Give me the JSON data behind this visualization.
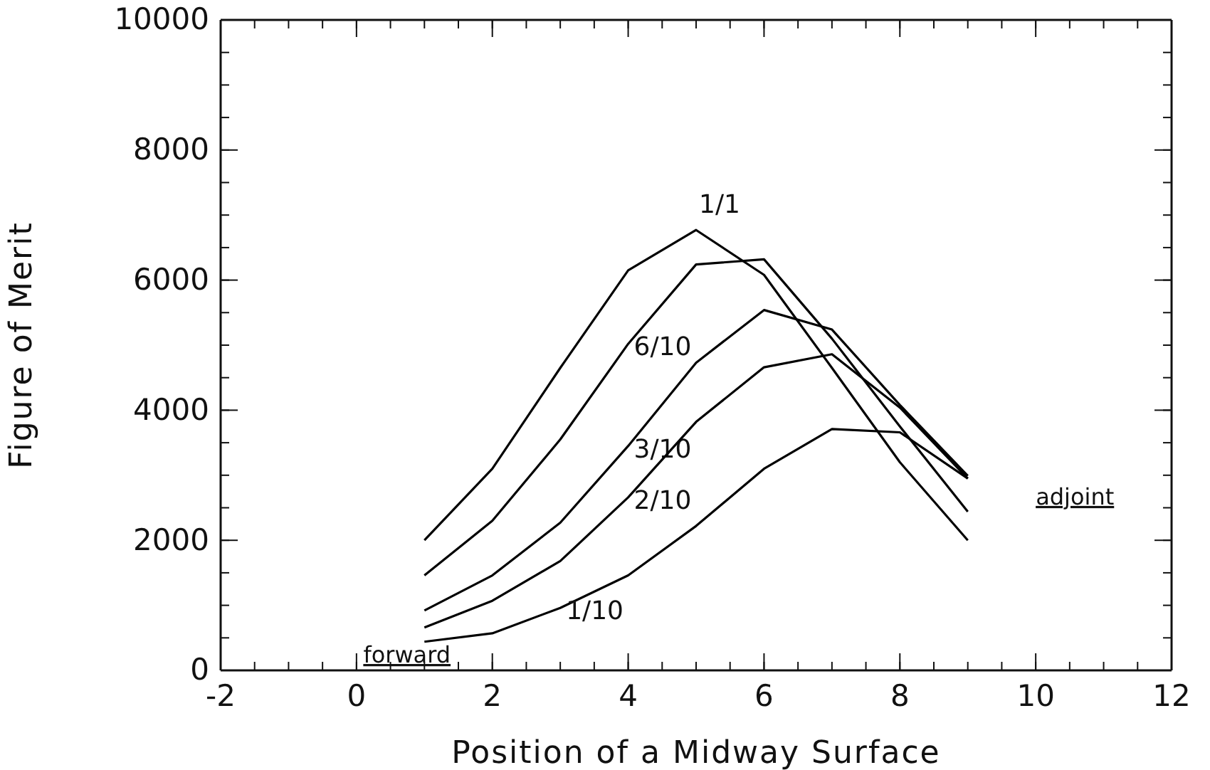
{
  "chart_data": {
    "type": "line",
    "xlabel": "Position of a Midway Surface",
    "ylabel": "Figure of Merit",
    "x": [
      1,
      2,
      3,
      4,
      5,
      6,
      7,
      8,
      9
    ],
    "series": [
      {
        "name": "1/1",
        "color": "#000000",
        "values": [
          2000,
          3100,
          4650,
          6150,
          6770,
          6080,
          4650,
          3200,
          2000
        ]
      },
      {
        "name": "6/10",
        "color": "#000000",
        "values": [
          1460,
          2300,
          3550,
          5020,
          6240,
          6320,
          5100,
          3750,
          2440
        ]
      },
      {
        "name": "3/10",
        "color": "#000000",
        "values": [
          920,
          1460,
          2270,
          3450,
          4730,
          5540,
          5240,
          4080,
          2990
        ]
      },
      {
        "name": "2/10",
        "color": "#000000",
        "values": [
          660,
          1070,
          1680,
          2660,
          3820,
          4660,
          4860,
          4040,
          2950
        ]
      },
      {
        "name": "1/10",
        "color": "#000000",
        "values": [
          440,
          570,
          960,
          1460,
          2220,
          3100,
          3710,
          3660,
          2950
        ]
      }
    ],
    "xlim": [
      -2,
      12
    ],
    "xticks": [
      -2,
      0,
      2,
      4,
      6,
      8,
      10,
      12
    ],
    "ylim": [
      0,
      10000
    ],
    "yticks": [
      0,
      2000,
      4000,
      6000,
      8000,
      10000
    ],
    "grid": false,
    "legend": false,
    "marker": "none",
    "line_style": "solid",
    "annotations": [
      "forward",
      "adjoint"
    ]
  }
}
